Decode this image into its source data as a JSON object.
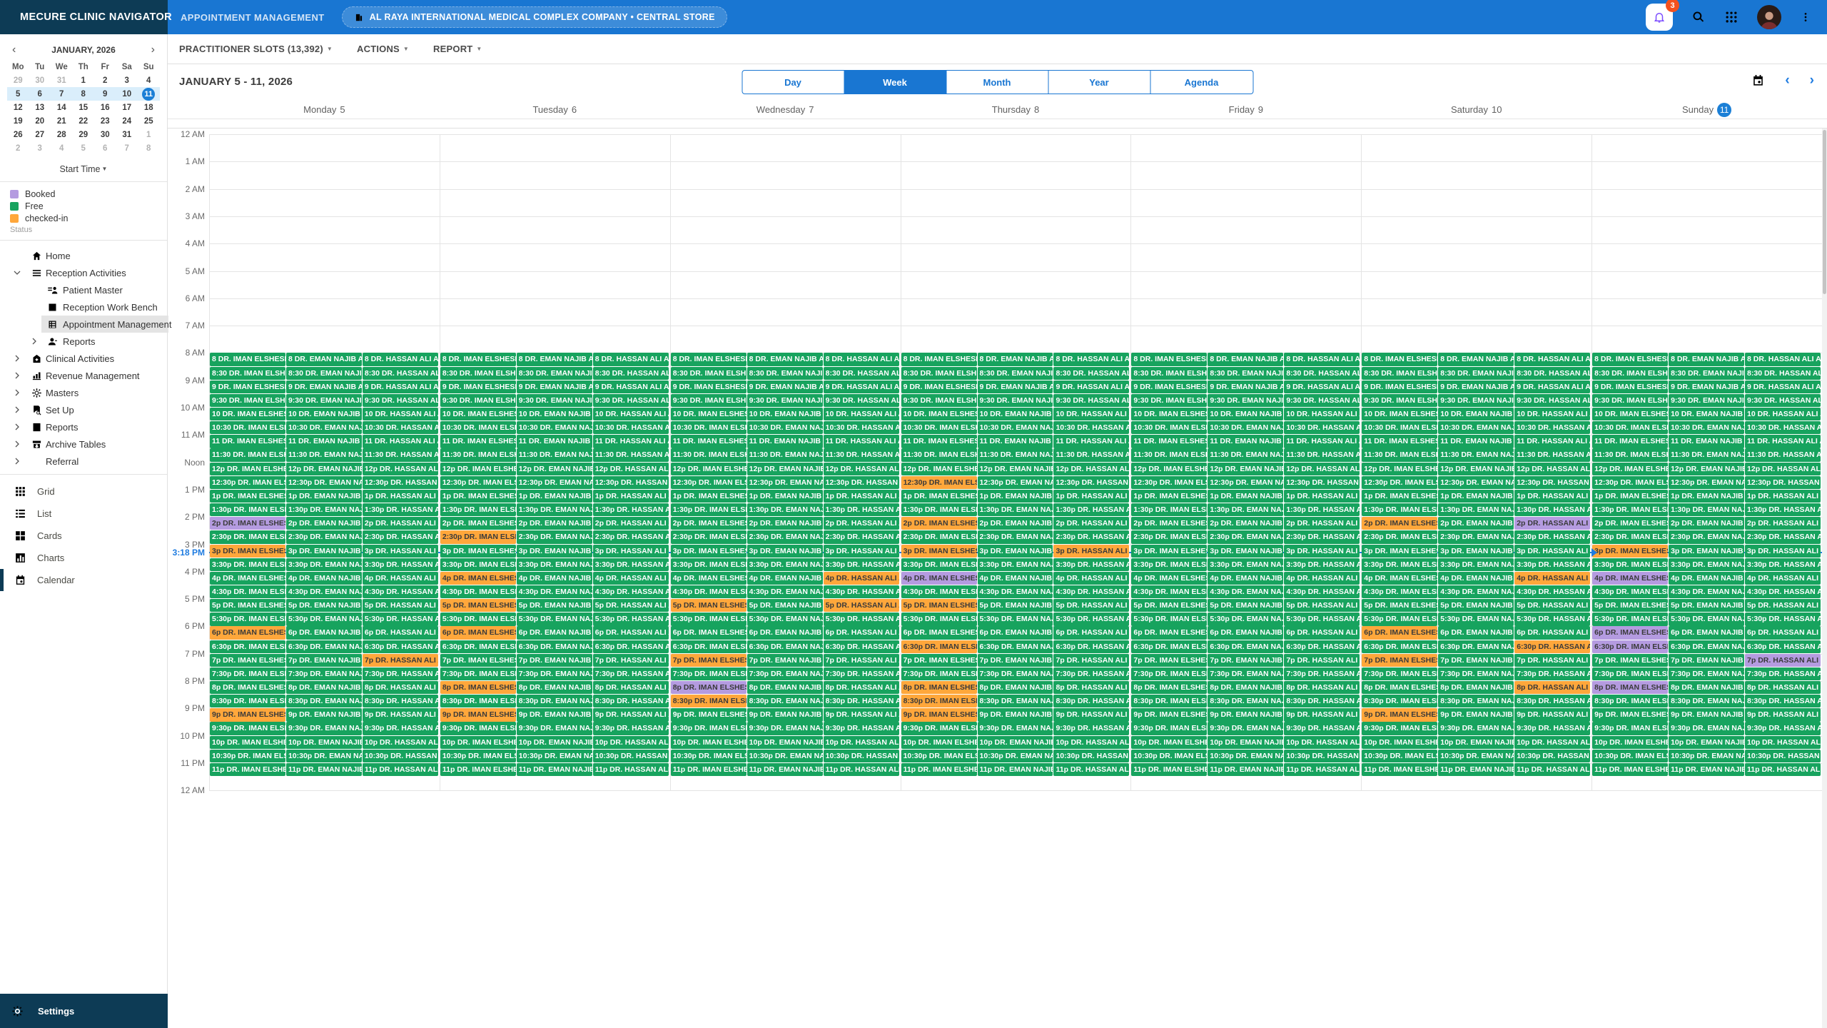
{
  "topbar": {
    "brand": "MECURE CLINIC NAVIGATOR",
    "module": "APPOINTMENT MANAGEMENT",
    "facility": "AL RAYA INTERNATIONAL MEDICAL COMPLEX COMPANY • CENTRAL STORE",
    "notification_count": "3"
  },
  "mini_calendar": {
    "title": "JANUARY, 2026",
    "prev": "‹",
    "next": "›",
    "weekdays": [
      "Mo",
      "Tu",
      "We",
      "Th",
      "Fr",
      "Sa",
      "Su"
    ],
    "weeks": [
      [
        "-29",
        "-30",
        "-31",
        "1",
        "2",
        "3",
        "4"
      ],
      [
        "5",
        "6",
        "7",
        "8",
        "9",
        "10",
        "+11"
      ],
      [
        "12",
        "13",
        "14",
        "15",
        "16",
        "17",
        "18"
      ],
      [
        "19",
        "20",
        "21",
        "22",
        "23",
        "24",
        "25"
      ],
      [
        "26",
        "27",
        "28",
        "29",
        "30",
        "31",
        "-1"
      ],
      [
        "-2",
        "-3",
        "-4",
        "-5",
        "-6",
        "-7",
        "-8"
      ]
    ],
    "selected_week_index": 1,
    "start_time_label": "Start Time"
  },
  "legend": {
    "items": [
      {
        "label": "Booked",
        "status": "booked"
      },
      {
        "label": "Free",
        "status": "free"
      },
      {
        "label": "checked-in",
        "status": "checkedin"
      }
    ],
    "caption": "Status"
  },
  "nav": {
    "items": [
      {
        "label": "Home",
        "icon": "home",
        "depth": 0,
        "chev": "none"
      },
      {
        "label": "Reception Activities",
        "icon": "menu",
        "depth": 0,
        "chev": "down"
      },
      {
        "label": "Patient Master",
        "icon": "patient",
        "depth": 1,
        "chev": "none"
      },
      {
        "label": "Reception Work Bench",
        "icon": "workbench",
        "depth": 1,
        "chev": "none"
      },
      {
        "label": "Appointment Management",
        "icon": "appointment",
        "depth": 1,
        "chev": "none",
        "selected": true
      },
      {
        "label": "Reports",
        "icon": "person",
        "depth": 1,
        "chev": "right"
      },
      {
        "label": "Clinical Activities",
        "icon": "clinical",
        "depth": 0,
        "chev": "right"
      },
      {
        "label": "Revenue Management",
        "icon": "revenue",
        "depth": 0,
        "chev": "right"
      },
      {
        "label": "Masters",
        "icon": "gear",
        "depth": 0,
        "chev": "right"
      },
      {
        "label": "Set Up",
        "icon": "setup",
        "depth": 0,
        "chev": "right"
      },
      {
        "label": "Reports",
        "icon": "report",
        "depth": 0,
        "chev": "right"
      },
      {
        "label": "Archive Tables",
        "icon": "archive",
        "depth": 0,
        "chev": "right"
      },
      {
        "label": "Referral",
        "icon": "",
        "depth": 0,
        "chev": "right"
      }
    ],
    "views": [
      {
        "label": "Grid",
        "icon": "grid"
      },
      {
        "label": "List",
        "icon": "list"
      },
      {
        "label": "Cards",
        "icon": "cards"
      },
      {
        "label": "Charts",
        "icon": "charts"
      },
      {
        "label": "Calendar",
        "icon": "calendar",
        "selected": true
      }
    ],
    "settings_label": "Settings"
  },
  "toolbar": {
    "slots_label": "PRACTITIONER SLOTS (13,392)",
    "actions_label": "ACTIONS",
    "report_label": "REPORT"
  },
  "calendar_header": {
    "date_range": "JANUARY 5 - 11, 2026",
    "views": [
      "Day",
      "Week",
      "Month",
      "Year",
      "Agenda"
    ],
    "active_view": "Week"
  },
  "schedule": {
    "days": [
      {
        "name": "Monday",
        "num": "5"
      },
      {
        "name": "Tuesday",
        "num": "6"
      },
      {
        "name": "Wednesday",
        "num": "7"
      },
      {
        "name": "Thursday",
        "num": "8"
      },
      {
        "name": "Friday",
        "num": "9"
      },
      {
        "name": "Saturday",
        "num": "10"
      },
      {
        "name": "Sunday",
        "num": "11",
        "today": true
      }
    ],
    "doctors": [
      "DR. IMAN ELSHESHT",
      "DR. EMAN NAJIB AL",
      "DR. HASSAN ALI AL"
    ],
    "hours": [
      "12 AM",
      "1 AM",
      "2 AM",
      "3 AM",
      "4 AM",
      "5 AM",
      "6 AM",
      "7 AM",
      "8 AM",
      "9 AM",
      "10 AM",
      "11 AM",
      "Noon",
      "1 PM",
      "2 PM",
      "3 PM",
      "4 PM",
      "5 PM",
      "6 PM",
      "7 PM",
      "8 PM",
      "9 PM",
      "10 PM",
      "11 PM",
      "12 AM"
    ],
    "slot_labels": [
      "8",
      "8:30",
      "9",
      "9:30",
      "10",
      "10:30",
      "11",
      "11:30",
      "12p",
      "12:30p",
      "1p",
      "1:30p",
      "2p",
      "2:30p",
      "3p",
      "3:30p",
      "4p",
      "4:30p",
      "5p",
      "5:30p",
      "6p",
      "6:30p",
      "7p",
      "7:30p",
      "8p",
      "8:30p",
      "9p",
      "9:30p",
      "10p",
      "10:30p",
      "11p"
    ],
    "first_slot_hour": 8,
    "current_time": {
      "label": "3:18 PM",
      "hours24": 15.3
    },
    "status_colors": {
      "free": "#17a35e",
      "booked": "#b49be0",
      "checkedin": "#ffa73b",
      "current_line": "#1e7be0"
    },
    "exceptions": [
      [
        0,
        0,
        "2p",
        "booked"
      ],
      [
        0,
        0,
        "3p",
        "checkedin"
      ],
      [
        0,
        0,
        "6p",
        "checkedin"
      ],
      [
        0,
        0,
        "9p",
        "checkedin"
      ],
      [
        0,
        2,
        "7p",
        "checkedin"
      ],
      [
        1,
        0,
        "2:30p",
        "checkedin"
      ],
      [
        1,
        0,
        "4p",
        "checkedin"
      ],
      [
        1,
        0,
        "5p",
        "checkedin"
      ],
      [
        1,
        0,
        "6p",
        "checkedin"
      ],
      [
        1,
        0,
        "8p",
        "checkedin"
      ],
      [
        1,
        0,
        "9p",
        "checkedin"
      ],
      [
        2,
        0,
        "5p",
        "checkedin"
      ],
      [
        2,
        0,
        "7p",
        "checkedin"
      ],
      [
        2,
        0,
        "8p",
        "booked"
      ],
      [
        2,
        0,
        "8:30p",
        "checkedin"
      ],
      [
        2,
        2,
        "4p",
        "checkedin"
      ],
      [
        2,
        2,
        "5p",
        "checkedin"
      ],
      [
        3,
        0,
        "12:30p",
        "checkedin"
      ],
      [
        3,
        0,
        "2p",
        "checkedin"
      ],
      [
        3,
        0,
        "3p",
        "checkedin"
      ],
      [
        3,
        0,
        "4p",
        "booked"
      ],
      [
        3,
        0,
        "5p",
        "checkedin"
      ],
      [
        3,
        0,
        "6:30p",
        "checkedin"
      ],
      [
        3,
        0,
        "8p",
        "checkedin"
      ],
      [
        3,
        0,
        "8:30p",
        "checkedin"
      ],
      [
        3,
        0,
        "9p",
        "checkedin"
      ],
      [
        3,
        2,
        "3p",
        "checkedin"
      ],
      [
        5,
        0,
        "2p",
        "checkedin"
      ],
      [
        5,
        0,
        "6p",
        "checkedin"
      ],
      [
        5,
        0,
        "7p",
        "checkedin"
      ],
      [
        5,
        0,
        "9p",
        "checkedin"
      ],
      [
        5,
        2,
        "2p",
        "booked"
      ],
      [
        5,
        2,
        "4p",
        "checkedin"
      ],
      [
        5,
        2,
        "6:30p",
        "checkedin"
      ],
      [
        5,
        2,
        "8p",
        "checkedin"
      ],
      [
        6,
        0,
        "3p",
        "checkedin"
      ],
      [
        6,
        0,
        "4p",
        "booked"
      ],
      [
        6,
        0,
        "6p",
        "booked"
      ],
      [
        6,
        0,
        "6:30p",
        "booked"
      ],
      [
        6,
        0,
        "8p",
        "booked"
      ],
      [
        6,
        2,
        "7p",
        "booked"
      ]
    ]
  }
}
